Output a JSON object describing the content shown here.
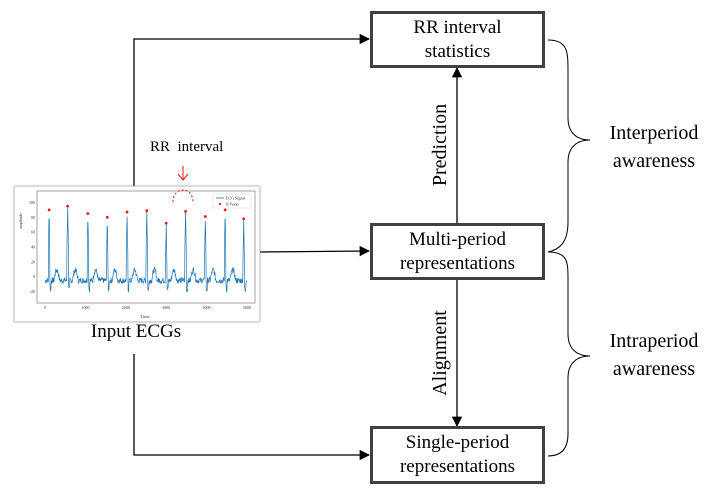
{
  "boxes": {
    "rr_stats": "RR interval\nstatistics",
    "multi_period": "Multi-period\nrepresentations",
    "single_period": "Single-period\nrepresentations"
  },
  "edge_labels": {
    "prediction": "Prediction",
    "alignment": "Alignment"
  },
  "groups": {
    "interperiod": "Interperiod\nawareness",
    "intraperiod": "Intraperiod\nawareness"
  },
  "ecg": {
    "rr_annotation": "RR  interval",
    "caption": "Input ECGs",
    "legend_signal": "ECG Signal",
    "legend_peaks": "R Peaks",
    "y_axis_title": "amplitude",
    "x_axis_title": "Time",
    "y_ticks": [
      "100",
      "80",
      "60",
      "40",
      "20",
      "0",
      "-20"
    ],
    "x_ticks": [
      "0",
      "1000",
      "2000",
      "3000",
      "4000",
      "5000"
    ],
    "signal_color": "#1f77b4",
    "peak_color": "#e8131b"
  }
}
